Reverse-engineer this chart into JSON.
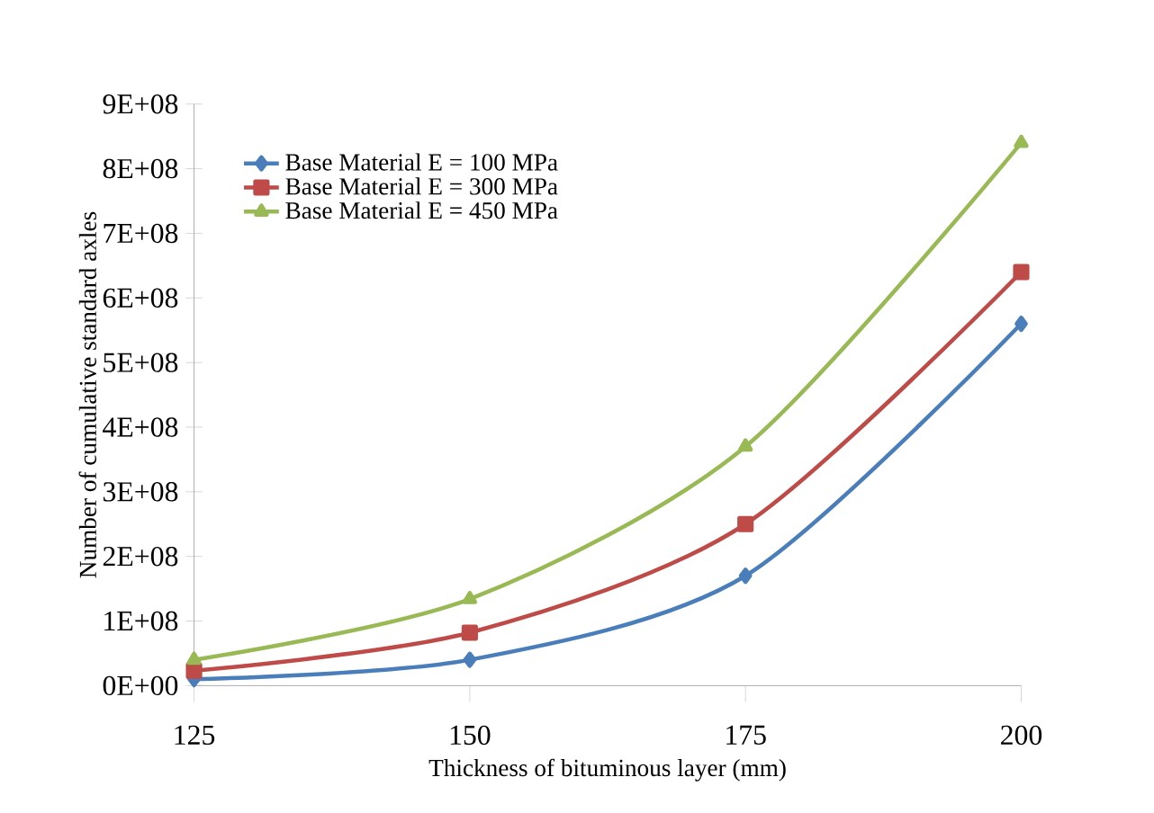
{
  "chart_data": {
    "type": "line",
    "xlabel": "Thickness of bituminous layer (mm)",
    "ylabel": "Number of cumulative standard axles",
    "x": [
      125,
      150,
      175,
      200
    ],
    "series": [
      {
        "name": "Base Material E = 100 MPa",
        "color": "#4a7ebb",
        "marker": "diamond",
        "values": [
          10000000,
          40000000,
          170000000,
          560000000
        ]
      },
      {
        "name": "Base Material E = 300 MPa",
        "color": "#be4b48",
        "marker": "square",
        "values": [
          23000000,
          82000000,
          250000000,
          640000000
        ]
      },
      {
        "name": "Base Material E = 450 MPa",
        "color": "#98b954",
        "marker": "triangle",
        "values": [
          40000000,
          134000000,
          370000000,
          840000000
        ]
      }
    ],
    "xlim": [
      125,
      200
    ],
    "xticks": [
      125,
      150,
      175,
      200
    ],
    "ylim": [
      0,
      900000000
    ],
    "yticks": [
      {
        "value": 0,
        "label": "0E+00"
      },
      {
        "value": 100000000,
        "label": "1E+08"
      },
      {
        "value": 200000000,
        "label": "2E+08"
      },
      {
        "value": 300000000,
        "label": "3E+08"
      },
      {
        "value": 400000000,
        "label": "4E+08"
      },
      {
        "value": 500000000,
        "label": "5E+08"
      },
      {
        "value": 600000000,
        "label": "6E+08"
      },
      {
        "value": 700000000,
        "label": "7E+08"
      },
      {
        "value": 800000000,
        "label": "8E+08"
      },
      {
        "value": 900000000,
        "label": "9E+08"
      }
    ],
    "grid": false,
    "legend": "top left",
    "line_style": "solid"
  }
}
